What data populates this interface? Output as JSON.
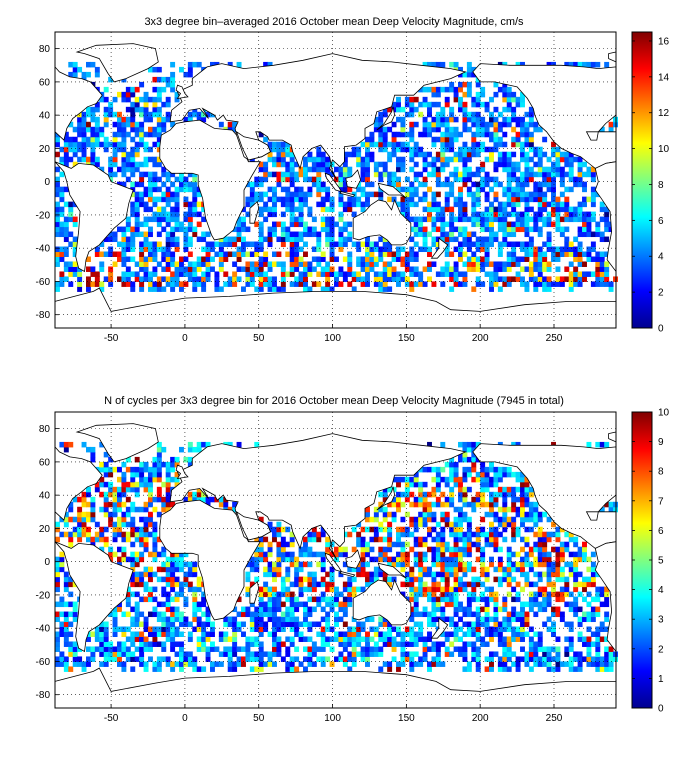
{
  "chart_data": [
    {
      "type": "heatmap",
      "title": "3x3 degree bin–averaged 2016 October mean Deep Velocity Magnitude, cm/s",
      "xlabel": "",
      "ylabel": "",
      "xlim": [
        -88,
        292
      ],
      "ylim": [
        -88,
        90
      ],
      "x_ticks": [
        -50,
        0,
        50,
        100,
        150,
        200,
        250
      ],
      "y_ticks": [
        80,
        60,
        40,
        20,
        0,
        -20,
        -40,
        -60,
        -80
      ],
      "grid": true,
      "grid_style": "dotted",
      "bin_size_deg": 3,
      "colormap": "jet",
      "colorbar": {
        "min": 0,
        "max": 16.5,
        "ticks": [
          0,
          2,
          4,
          6,
          8,
          10,
          12,
          14,
          16
        ]
      },
      "cell_distribution": {
        "dominant_range": [
          2,
          6
        ],
        "high_region": "Southern Ocean / Antarctic Circumpolar Current",
        "high_lat_range": [
          -62,
          -42
        ]
      }
    },
    {
      "type": "heatmap",
      "title": "N of cycles per 3x3 degree bin for 2016 October mean Deep Velocity Magnitude (7945 in total)",
      "xlabel": "",
      "ylabel": "",
      "xlim": [
        -88,
        292
      ],
      "ylim": [
        -88,
        90
      ],
      "x_ticks": [
        -50,
        0,
        50,
        100,
        150,
        200,
        250
      ],
      "y_ticks": [
        80,
        60,
        40,
        20,
        0,
        -20,
        -40,
        -60,
        -80
      ],
      "grid": true,
      "grid_style": "dotted",
      "bin_size_deg": 3,
      "colormap": "jet",
      "total_cycles": 7945,
      "colorbar": {
        "min": 0,
        "max": 10,
        "ticks": [
          0,
          1,
          2,
          3,
          4,
          5,
          6,
          7,
          8,
          9,
          10
        ]
      },
      "cell_distribution": {
        "dominant_range": [
          1,
          4
        ],
        "high_region": "tropical and North Pacific",
        "high_lat_range": [
          -20,
          50
        ]
      }
    }
  ]
}
